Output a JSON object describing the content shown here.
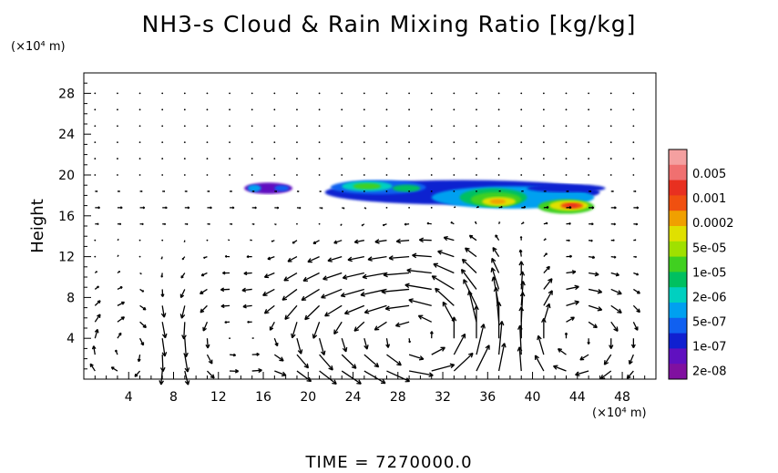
{
  "chart_data": {
    "type": "heatmap",
    "title": "NH3-s Cloud & Rain Mixing Ratio [kg/kg]",
    "ylabel": "Height",
    "y_unit": "(×10⁴ m)",
    "x_unit": "(×10⁴ m)",
    "x_ticks": [
      4,
      8,
      12,
      16,
      20,
      24,
      28,
      32,
      36,
      40,
      44,
      48
    ],
    "y_ticks": [
      4,
      8,
      12,
      16,
      20,
      24,
      28
    ],
    "xlim": [
      0,
      51
    ],
    "ylim": [
      0,
      30
    ],
    "colorbar": {
      "labels": [
        "0.005",
        "0.001",
        "0.0002",
        "5e-05",
        "1e-05",
        "2e-06",
        "5e-07",
        "1e-07",
        "2e-08"
      ],
      "colors": [
        "#f4a0a0",
        "#f07070",
        "#e83020",
        "#f05010",
        "#f0a000",
        "#e0e000",
        "#a0e000",
        "#40d020",
        "#00c060",
        "#00d0c0",
        "#00a0f0",
        "#1060f0",
        "#1020d0",
        "#6010c0",
        "#8010a0"
      ]
    },
    "cloud_regions": [
      {
        "x": [
          14.3,
          18.6
        ],
        "y": [
          18.2,
          19.2
        ],
        "max_level": "1e-07"
      },
      {
        "x": [
          21.5,
          46
        ],
        "y": [
          16.2,
          19.6
        ],
        "max_level": "0.0002"
      }
    ],
    "cores": [
      {
        "x": 36.8,
        "y": 17.4,
        "level": "0.0002"
      },
      {
        "x": 43.5,
        "y": 17.0,
        "level": "0.0002"
      }
    ],
    "wind_vectors": "quiver field; strong circulation cells near x≈28–34 and x≈42–46 below 8, weak flow aloft"
  },
  "footer": {
    "time_text": "TIME = 7270000.0"
  }
}
